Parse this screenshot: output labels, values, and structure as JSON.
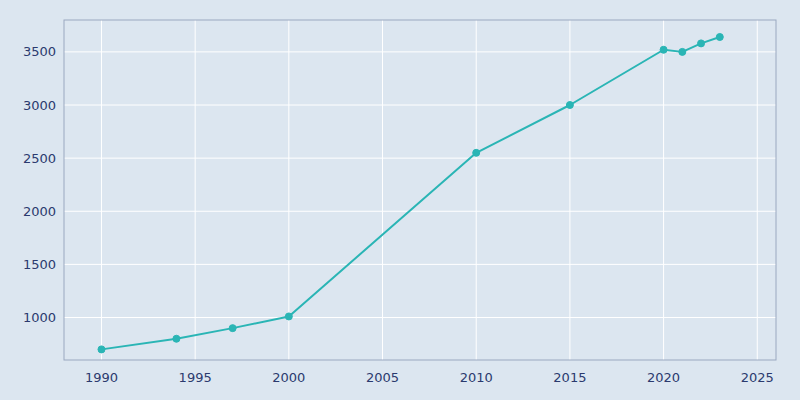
{
  "chart_data": {
    "type": "line",
    "x": [
      1990,
      1994,
      1997,
      2000,
      2010,
      2015,
      2020,
      2021,
      2022,
      2023
    ],
    "values": [
      700,
      800,
      900,
      1010,
      2550,
      3000,
      3520,
      3500,
      3580,
      3640
    ],
    "color": "#2ab5b5",
    "marker": "circle",
    "xlim": [
      1988,
      2026
    ],
    "ylim": [
      600,
      3800
    ],
    "xticks": [
      1990,
      1995,
      2000,
      2005,
      2010,
      2015,
      2020,
      2025
    ],
    "yticks": [
      1000,
      1500,
      2000,
      2500,
      3000,
      3500
    ],
    "grid": true
  }
}
